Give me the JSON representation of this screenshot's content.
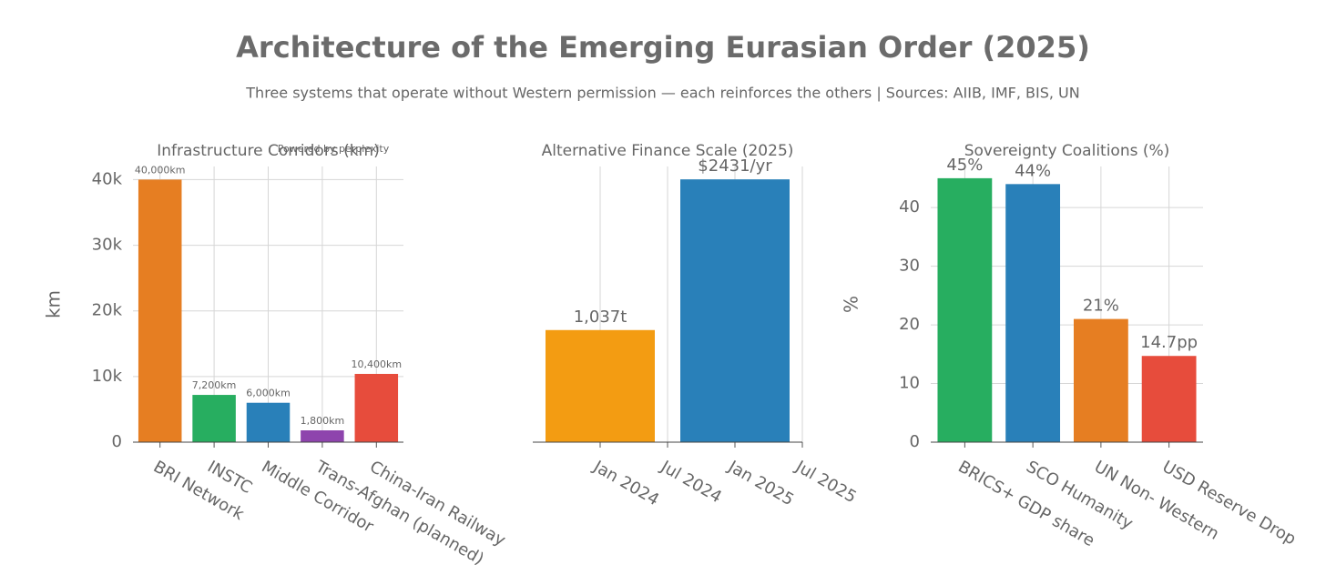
{
  "title": "Architecture of the Emerging Eurasian Order (2025)",
  "subtitle": "Three systems that operate without Western permission — each reinforces the others | Sources: AIIB, IMF, BIS, UN",
  "chart_data": [
    {
      "type": "bar",
      "title": "Infrastructure Corridors (km)",
      "ylabel": "km",
      "annotation": "Powered by perplexity",
      "categories": [
        "BRI Network",
        "INSTC",
        "Middle Corridor",
        "Trans-Afghan (planned)",
        "China-Iran Railway"
      ],
      "values": [
        40000,
        7200,
        6000,
        1800,
        10400
      ],
      "value_labels": [
        "40,000km",
        "7,200km",
        "6,000km",
        "1,800km",
        "10,400km"
      ],
      "colors": [
        "#e67e22",
        "#27ae60",
        "#2980b9",
        "#8e44ad",
        "#e74c3c"
      ],
      "ylim": [
        0,
        42000
      ],
      "yticks": [
        0,
        {
          "value": 10000,
          "label": "10k"
        },
        {
          "value": 20000,
          "label": "20k"
        },
        {
          "value": 30000,
          "label": "30k"
        },
        {
          "value": 40000,
          "label": "40k"
        }
      ],
      "grid": true
    },
    {
      "type": "datebar",
      "title": "Alternative Finance Scale (2025)",
      "x": [
        "2024-01",
        "2025-01"
      ],
      "values": [
        1037,
        2431
      ],
      "value_labels": [
        "1,037t",
        "$2431/yr"
      ],
      "colors": [
        "#f39c12",
        "#2980b9"
      ],
      "xlim": [
        "2023-07",
        "2025-07"
      ],
      "xticks": [
        {
          "value": "2024-01",
          "label": "Jan 2024"
        },
        {
          "value": "2024-07",
          "label": "Jul 2024"
        },
        {
          "value": "2025-01",
          "label": "Jan 2025"
        },
        {
          "value": "2025-07",
          "label": "Jul 2025"
        }
      ],
      "ylim": [
        0,
        2550
      ],
      "grid": true
    },
    {
      "type": "bar",
      "title": "Sovereignty Coalitions (%)",
      "ylabel": "%",
      "categories": [
        "BRICS+ GDP share",
        "SCO Humanity",
        "UN Non- Western",
        "USD Reserve Drop"
      ],
      "values": [
        45,
        44,
        21,
        14.7
      ],
      "value_labels": [
        "45%",
        "44%",
        "21%",
        "14.7pp"
      ],
      "colors": [
        "#27ae60",
        "#2980b9",
        "#e67e22",
        "#e74c3c"
      ],
      "ylim": [
        0,
        47
      ],
      "yticks": [
        0,
        10,
        20,
        30,
        40
      ],
      "grid": true
    }
  ]
}
